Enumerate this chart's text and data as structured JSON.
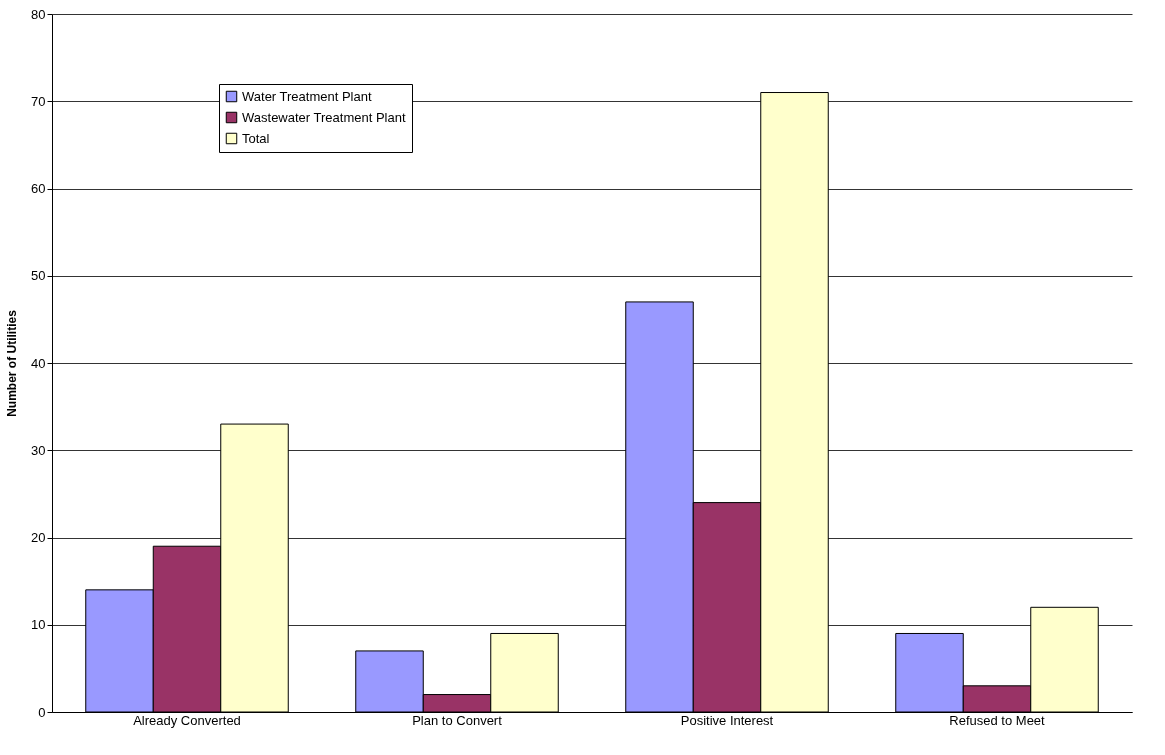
{
  "chart_data": {
    "type": "bar",
    "ylabel": "Number of Utilities",
    "categories": [
      "Already Converted",
      "Plan to Convert",
      "Positive Interest",
      "Refused to Meet"
    ],
    "series": [
      {
        "name": "Water Treatment Plant",
        "color": "#9999ff",
        "values": [
          14,
          7,
          47,
          9
        ]
      },
      {
        "name": "Wastewater Treatment Plant",
        "color": "#993366",
        "values": [
          19,
          2,
          24,
          3
        ]
      },
      {
        "name": "Total",
        "color": "#ffffcc",
        "values": [
          33,
          9,
          71,
          12
        ]
      }
    ],
    "ylim": [
      0,
      80
    ],
    "yticks": [
      0,
      10,
      20,
      30,
      40,
      50,
      60,
      70,
      80
    ],
    "grid": "y",
    "legend": "top left"
  }
}
